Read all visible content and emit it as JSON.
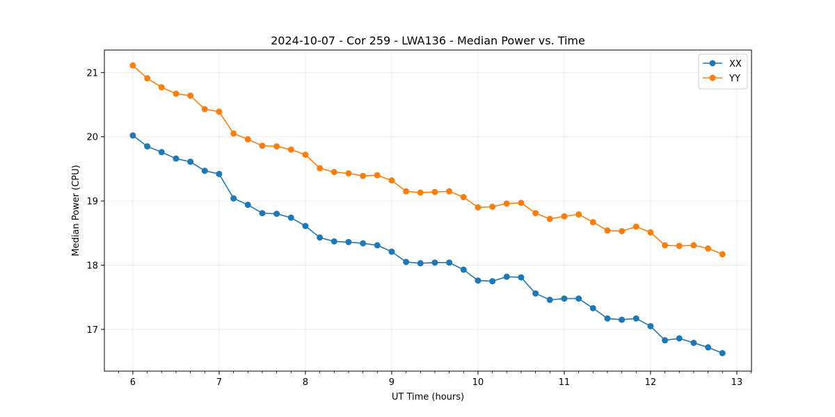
{
  "chart_data": {
    "type": "line",
    "title": "2024-10-07 - Cor 259 - LWA136 - Median Power vs. Time",
    "xlabel": "UT Time (hours)",
    "ylabel": "Median Power (CPU)",
    "xlim": [
      5.67,
      13.17
    ],
    "ylim": [
      16.35,
      21.35
    ],
    "xticks": [
      6,
      7,
      8,
      9,
      10,
      11,
      12,
      13
    ],
    "yticks": [
      17,
      18,
      19,
      20,
      21
    ],
    "grid": true,
    "legend_position": "top-right",
    "x": [
      6.0,
      6.167,
      6.333,
      6.5,
      6.667,
      6.833,
      7.0,
      7.167,
      7.333,
      7.5,
      7.667,
      7.833,
      8.0,
      8.167,
      8.333,
      8.5,
      8.667,
      8.833,
      9.0,
      9.167,
      9.333,
      9.5,
      9.667,
      9.833,
      10.0,
      10.167,
      10.333,
      10.5,
      10.667,
      10.833,
      11.0,
      11.167,
      11.333,
      11.5,
      11.667,
      11.833,
      12.0,
      12.167,
      12.333,
      12.5,
      12.667,
      12.833
    ],
    "series": [
      {
        "name": "XX",
        "color": "#1f77b4",
        "values": [
          20.02,
          19.85,
          19.76,
          19.66,
          19.61,
          19.47,
          19.42,
          19.04,
          18.94,
          18.81,
          18.8,
          18.74,
          18.61,
          18.43,
          18.37,
          18.36,
          18.34,
          18.31,
          18.21,
          18.05,
          18.03,
          18.04,
          18.04,
          17.93,
          17.76,
          17.75,
          17.82,
          17.81,
          17.56,
          17.46,
          17.48,
          17.48,
          17.33,
          17.17,
          17.15,
          17.17,
          17.05,
          16.83,
          16.86,
          16.79,
          16.72,
          16.63
        ]
      },
      {
        "name": "YY",
        "color": "#ff7f0e",
        "values": [
          21.11,
          20.91,
          20.77,
          20.67,
          20.64,
          20.43,
          20.39,
          20.05,
          19.96,
          19.86,
          19.85,
          19.8,
          19.72,
          19.51,
          19.45,
          19.43,
          19.39,
          19.4,
          19.32,
          19.15,
          19.13,
          19.14,
          19.15,
          19.06,
          18.9,
          18.91,
          18.96,
          18.97,
          18.81,
          18.72,
          18.76,
          18.79,
          18.67,
          18.54,
          18.53,
          18.6,
          18.51,
          18.31,
          18.3,
          18.31,
          18.26,
          18.17
        ]
      }
    ]
  }
}
